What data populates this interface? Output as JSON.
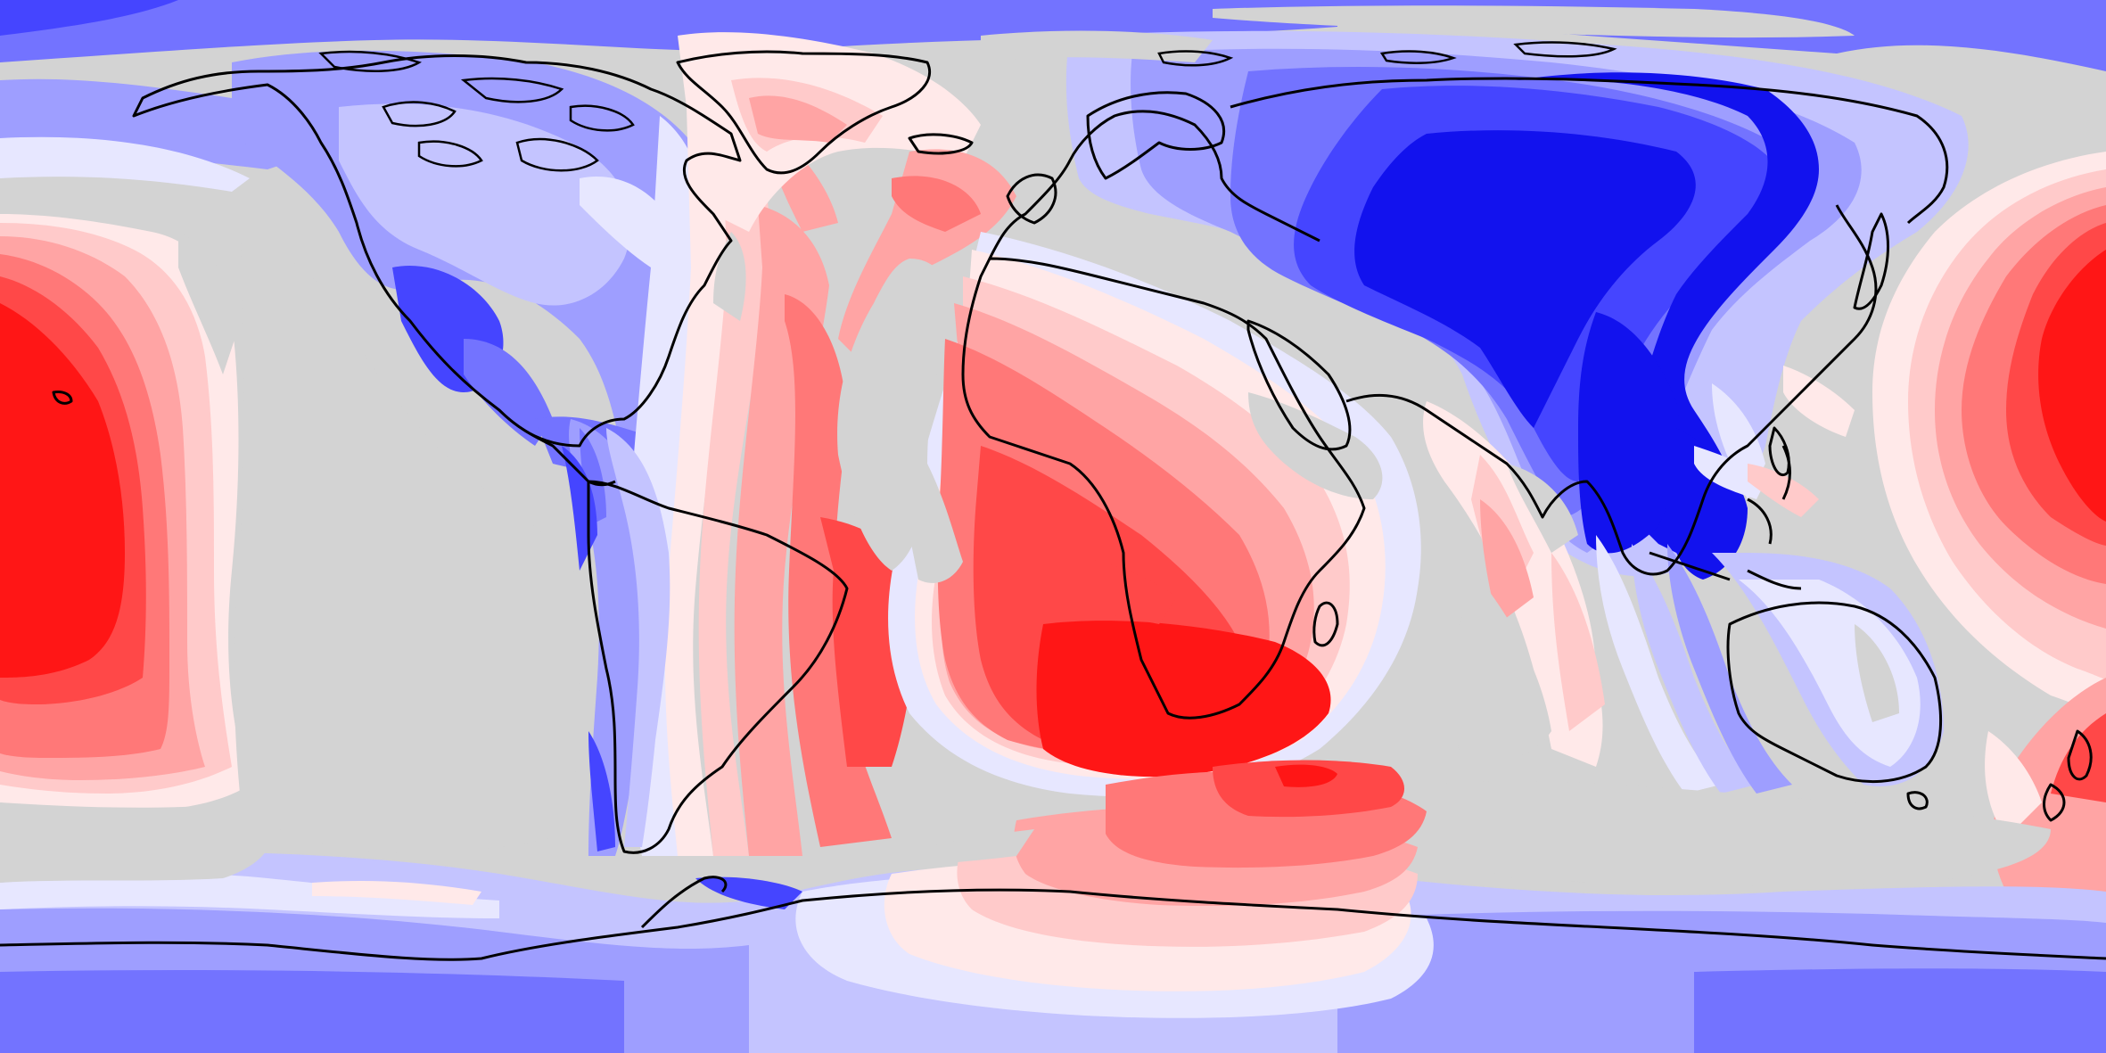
{
  "map": {
    "projection": "equirectangular",
    "extent": {
      "lon": [
        -180,
        180
      ],
      "lat": [
        -90,
        90
      ]
    },
    "colors": {
      "missing": "#d3d3d3",
      "coastline": "#000000",
      "levels_positive": [
        "#ffe9e9",
        "#ffcaca",
        "#ffa4a4",
        "#ff7878",
        "#ff4848",
        "#ff1616"
      ],
      "levels_negative": [
        "#e7e7ff",
        "#c4c4ff",
        "#9e9eff",
        "#7373ff",
        "#4545ff",
        "#1212ee"
      ]
    }
  }
}
